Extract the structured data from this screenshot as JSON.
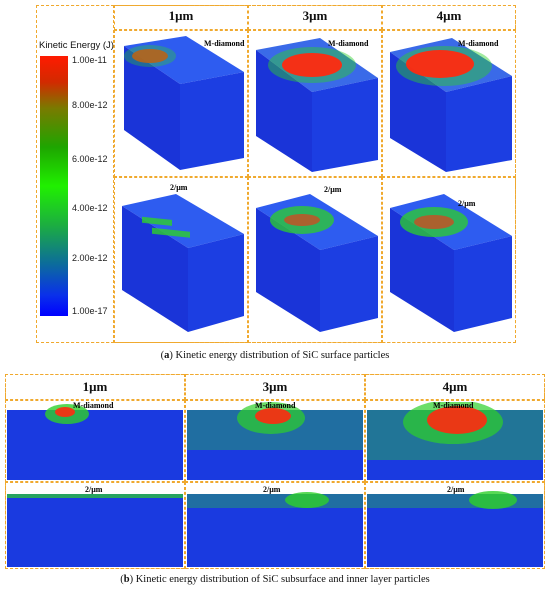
{
  "colorbar": {
    "title": "Kinetic Energy (J)",
    "ticks": [
      "1.00e-11",
      "8.00e-12",
      "6.00e-12",
      "4.00e-12",
      "2.00e-12",
      "1.00e-17"
    ]
  },
  "columns": [
    "1μm",
    "3μm",
    "4μm"
  ],
  "row_labels": {
    "top": "M-diamond",
    "bottom": "2/μm"
  },
  "captions": {
    "a_letter": "a",
    "a_text": " Kinetic energy distribution of SiC surface particles",
    "b_letter": "b",
    "b_text": " Kinetic energy distribution of SiC subsurface and inner layer particles"
  },
  "colors": {
    "dash": "#f0a92e",
    "blue": "#1030e8",
    "green": "#2ed02a",
    "red": "#ff2a10"
  }
}
